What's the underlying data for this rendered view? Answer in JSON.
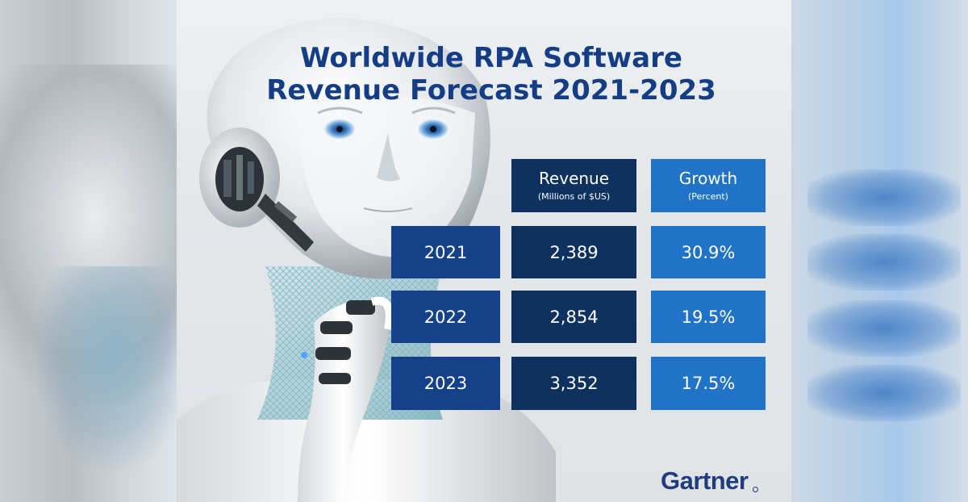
{
  "title_lines": [
    "Worldwide RPA Software",
    "Revenue Forecast 2021-2023"
  ],
  "brand": "Gartner",
  "chart_data": {
    "type": "table",
    "title": "Worldwide RPA Software Revenue Forecast 2021-2023",
    "columns": [
      {
        "label": "Revenue",
        "sublabel": "(Millions of $US)"
      },
      {
        "label": "Growth",
        "sublabel": "(Percent)"
      }
    ],
    "rows": [
      {
        "year": "2021",
        "revenue": "2,389",
        "growth": "30.9%"
      },
      {
        "year": "2022",
        "revenue": "2,854",
        "growth": "19.5%"
      },
      {
        "year": "2023",
        "revenue": "3,352",
        "growth": "17.5%"
      }
    ]
  },
  "colors": {
    "title": "#143d86",
    "year_cell": "#15418b",
    "revenue_cell": "#0e3160",
    "growth_cell": "#2173c7",
    "brand": "#1f3d7d"
  }
}
